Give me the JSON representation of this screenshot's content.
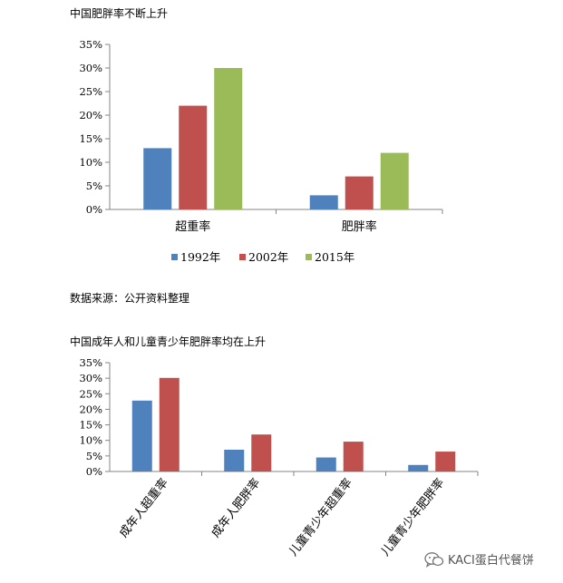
{
  "chart_data": [
    {
      "type": "bar",
      "title": "中国肥胖率不断上升",
      "categories": [
        "超重率",
        "肥胖率"
      ],
      "series": [
        {
          "name": "1992年",
          "values": [
            13,
            3
          ],
          "color": "#4f81bd"
        },
        {
          "name": "2002年",
          "values": [
            22,
            7
          ],
          "color": "#c0504d"
        },
        {
          "name": "2015年",
          "values": [
            30,
            12
          ],
          "color": "#9bbb59"
        }
      ],
      "ylim": [
        0,
        35
      ],
      "yticks": [
        "0%",
        "5%",
        "10%",
        "15%",
        "20%",
        "25%",
        "30%",
        "35%"
      ],
      "grid": false,
      "legend": "bottom"
    },
    {
      "type": "bar",
      "title": "中国成年人和儿童青少年肥胖率均在上升",
      "categories": [
        "成年人超重率",
        "成年人肥胖率",
        "儿童青少年超重率",
        "儿童青少年肥胖率"
      ],
      "series": [
        {
          "values": [
            22.8,
            7,
            4.5,
            2.1
          ],
          "color": "#4f81bd"
        },
        {
          "values": [
            30.1,
            11.9,
            9.6,
            6.4
          ],
          "color": "#c0504d"
        }
      ],
      "ylim": [
        0,
        35
      ],
      "yticks": [
        "0%",
        "5%",
        "10%",
        "15%",
        "20%",
        "25%",
        "30%",
        "35%"
      ],
      "grid": false,
      "legend": "none"
    }
  ],
  "source_note": "数据来源：公开资料整理",
  "watermark": {
    "text": "KACI蛋白代餐饼",
    "icon": "wechat-icon"
  }
}
